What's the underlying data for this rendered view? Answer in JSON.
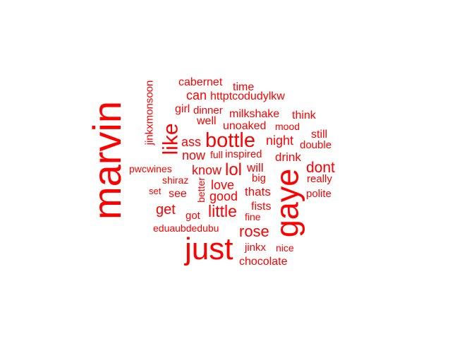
{
  "cloud": {
    "color": "#ff0000",
    "words": [
      "marvin",
      "just",
      "gaye",
      "like",
      "bottle",
      "lol",
      "little",
      "rose",
      "dont",
      "jinkxmonsoon",
      "get",
      "love",
      "good",
      "ass",
      "now",
      "know",
      "night",
      "drink",
      "will",
      "thats",
      "fists",
      "fine",
      "cabernet",
      "time",
      "can",
      "httptcodudylkw",
      "girl",
      "dinner",
      "milkshake",
      "think",
      "well",
      "unoaked",
      "mood",
      "still",
      "double",
      "full",
      "inspired",
      "pwcwines",
      "shiraz",
      "big",
      "really",
      "set",
      "see",
      "better",
      "polite",
      "got",
      "eduaubdedubu",
      "jinkx",
      "nice",
      "chocolate"
    ]
  }
}
